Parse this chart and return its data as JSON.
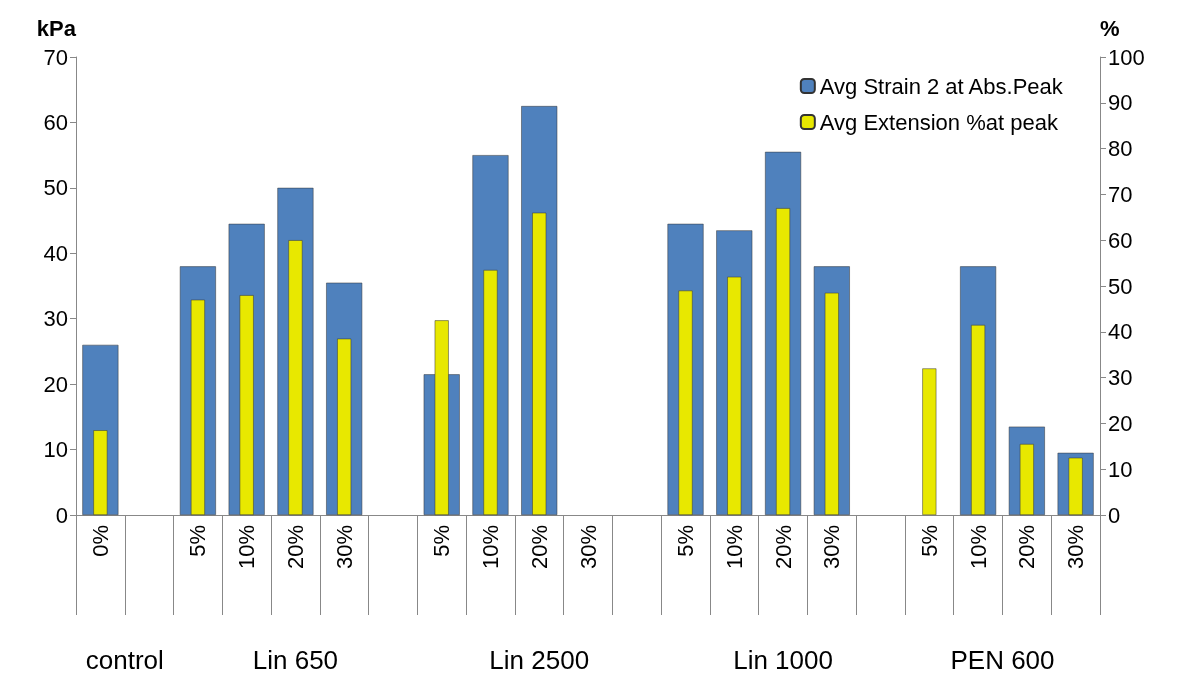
{
  "chart_data": {
    "type": "bar",
    "ylabel": "kPa",
    "y2label": "%",
    "categories": [
      "0%",
      null,
      "5%",
      "10%",
      "20%",
      "30%",
      null,
      "5%",
      "10%",
      "20%",
      "30%",
      null,
      "5%",
      "10%",
      "20%",
      "30%",
      null,
      "5%",
      "10%",
      "20%",
      "30%"
    ],
    "series": [
      {
        "name": "Avg Strain 2 at Abs.Peak",
        "color": "#4f81bd",
        "values": [
          26,
          null,
          38,
          44.5,
          50,
          35.5,
          null,
          21.5,
          55,
          62.5,
          null,
          null,
          44.5,
          43.5,
          55.5,
          38,
          null,
          null,
          38,
          13.5,
          9.5
        ]
      },
      {
        "name": "Avg Extension %at peak",
        "color": "#e8e800",
        "axis": "y2",
        "values": [
          18.5,
          null,
          47,
          48,
          60,
          38.5,
          null,
          42.5,
          53.5,
          66,
          null,
          null,
          49,
          52,
          67,
          48.5,
          null,
          32,
          41.5,
          15.5,
          12.5
        ]
      }
    ],
    "ylim": [
      0,
      70
    ],
    "yticks": [
      0,
      10,
      20,
      30,
      40,
      50,
      60,
      70
    ],
    "y2lim": [
      0,
      100
    ],
    "y2ticks": [
      0,
      10,
      20,
      30,
      40,
      50,
      60,
      70,
      80,
      90,
      100
    ],
    "grid": false,
    "legend": "top right",
    "annotations": [
      "control",
      "Lin 650",
      "Lin 2500",
      "Lin 1000",
      "PEN 600"
    ]
  }
}
